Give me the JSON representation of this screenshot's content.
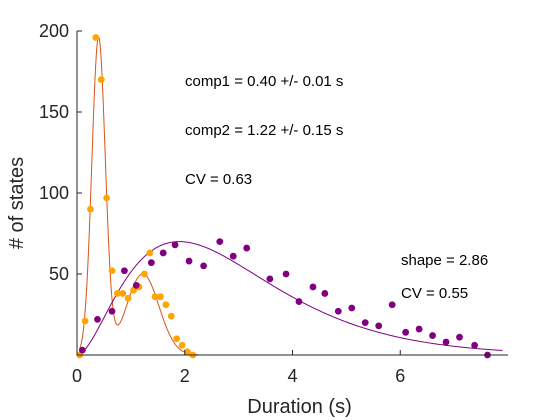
{
  "chart_data": {
    "type": "scatter",
    "xlabel": "Duration (s)",
    "ylabel": "# of states",
    "xlim": [
      0,
      8
    ],
    "ylim": [
      0,
      200
    ],
    "xticks": [
      0,
      2,
      4,
      6
    ],
    "yticks": [
      50,
      100,
      150,
      200
    ],
    "grid": false,
    "box": false,
    "annotations": [
      "comp1 = 0.40 +/- 0.01 s",
      "comp2 = 1.22 +/- 0.15 s",
      "CV = 0.63",
      "shape = 2.86",
      "CV = 0.55"
    ],
    "series": [
      {
        "kind": "points",
        "color": "#FFA500",
        "points": [
          [
            0.05,
            0
          ],
          [
            0.15,
            21
          ],
          [
            0.25,
            90
          ],
          [
            0.35,
            196
          ],
          [
            0.45,
            170
          ],
          [
            0.55,
            97
          ],
          [
            0.65,
            52
          ],
          [
            0.75,
            38
          ],
          [
            0.85,
            38
          ],
          [
            0.95,
            35
          ],
          [
            1.05,
            40
          ],
          [
            1.15,
            42
          ],
          [
            1.25,
            50
          ],
          [
            1.35,
            63
          ],
          [
            1.45,
            36
          ],
          [
            1.55,
            36
          ],
          [
            1.65,
            31
          ],
          [
            1.75,
            24
          ],
          [
            1.85,
            10
          ],
          [
            1.95,
            6
          ],
          [
            2.05,
            2
          ],
          [
            2.15,
            0
          ]
        ]
      },
      {
        "kind": "points",
        "color": "#800080",
        "points": [
          [
            0.1,
            3
          ],
          [
            0.38,
            22
          ],
          [
            0.65,
            27
          ],
          [
            0.88,
            52
          ],
          [
            1.1,
            43
          ],
          [
            1.38,
            57
          ],
          [
            1.6,
            63
          ],
          [
            1.82,
            68
          ],
          [
            2.08,
            58
          ],
          [
            2.35,
            55
          ],
          [
            2.65,
            70
          ],
          [
            2.9,
            61
          ],
          [
            3.15,
            66
          ],
          [
            3.58,
            47
          ],
          [
            3.88,
            50
          ],
          [
            4.12,
            33
          ],
          [
            4.38,
            42
          ],
          [
            4.6,
            38
          ],
          [
            4.85,
            27
          ],
          [
            5.1,
            29
          ],
          [
            5.35,
            20
          ],
          [
            5.6,
            18
          ],
          [
            5.85,
            31
          ],
          [
            6.1,
            14
          ],
          [
            6.35,
            16
          ],
          [
            6.6,
            12
          ],
          [
            6.85,
            8
          ],
          [
            7.1,
            11
          ],
          [
            7.38,
            6
          ],
          [
            7.62,
            0
          ]
        ]
      },
      {
        "kind": "curve",
        "color": "#D95319",
        "fn": "mixture",
        "params": {
          "A1": 195,
          "mu1": 0.4,
          "s1": 0.125,
          "A2": 50,
          "mu2": 1.22,
          "s2": 0.3
        }
      },
      {
        "kind": "curve",
        "color": "#800080",
        "fn": "gamma",
        "params": {
          "peak": 70,
          "shape": 2.86,
          "mode": 1.9
        }
      }
    ]
  }
}
